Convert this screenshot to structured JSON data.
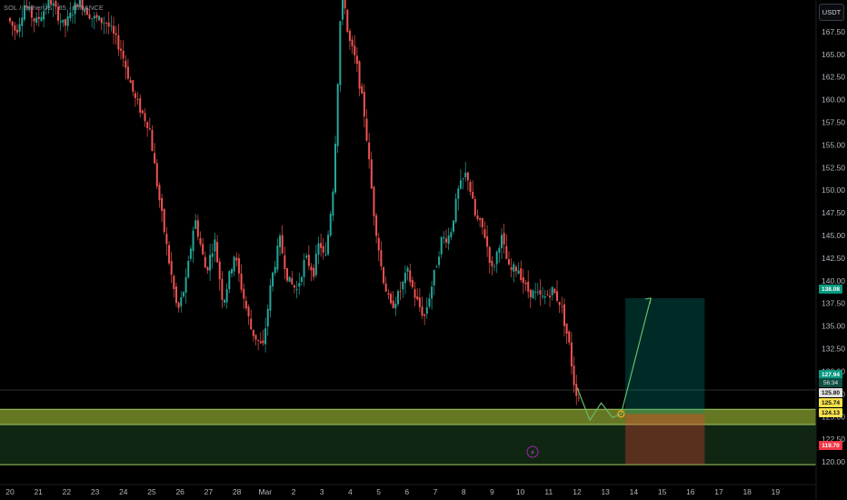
{
  "header": {
    "symbol_label": "SOL / TetherUS · 85 · BINANCE",
    "currency_button": "USDT"
  },
  "colors": {
    "bull": "#26a69a",
    "bear": "#ef5350",
    "zone": "#8bc34a",
    "projection": "#66bb6a"
  },
  "price_axis": {
    "ticks": [
      "167.50",
      "165.00",
      "162.50",
      "160.00",
      "157.50",
      "155.00",
      "152.50",
      "150.00",
      "147.50",
      "145.00",
      "142.50",
      "140.00",
      "137.50",
      "135.00",
      "132.50",
      "130.00",
      "127.50",
      "125.00",
      "122.50",
      "120.00"
    ],
    "badges": {
      "target": "138.08",
      "current": "127.94",
      "countdown": "56:34",
      "zone_top": "125.80",
      "zone_a": "125.74",
      "zone_b": "124.13",
      "stop": "119.70"
    }
  },
  "time_axis": {
    "labels": [
      "20",
      "21",
      "22",
      "23",
      "24",
      "25",
      "26",
      "27",
      "28",
      "Mar",
      "2",
      "3",
      "4",
      "5",
      "6",
      "7",
      "8",
      "9",
      "10",
      "11",
      "12",
      "13",
      "14",
      "15",
      "16",
      "17",
      "18",
      "19"
    ]
  },
  "chart_data": {
    "type": "candlestick",
    "title": "SOL / TetherUS · 85 · BINANCE",
    "x_labels": [
      "20",
      "21",
      "22",
      "23",
      "24",
      "25",
      "26",
      "27",
      "28",
      "Mar",
      "2",
      "3",
      "4",
      "5",
      "6",
      "7",
      "8",
      "9",
      "10",
      "11",
      "12",
      "13",
      "14",
      "15",
      "16",
      "17",
      "18",
      "19"
    ],
    "ylim": [
      117.5,
      171.0
    ],
    "y_ticks": [
      120.0,
      122.5,
      125.0,
      127.5,
      130.0,
      132.5,
      135.0,
      137.5,
      140.0,
      142.5,
      145.0,
      147.5,
      150.0,
      152.5,
      155.0,
      157.5,
      160.0,
      162.5,
      165.0,
      167.5
    ],
    "price_path": [
      [
        20,
        169.0
      ],
      [
        20.3,
        167.5
      ],
      [
        20.6,
        170.5
      ],
      [
        21,
        168.5
      ],
      [
        21.5,
        171.0
      ],
      [
        22,
        168.0
      ],
      [
        22.5,
        171.0
      ],
      [
        23,
        169.0
      ],
      [
        23.5,
        168.5
      ],
      [
        24,
        165.5
      ],
      [
        24.5,
        160.0
      ],
      [
        25,
        157.0
      ],
      [
        25.3,
        150.0
      ],
      [
        25.7,
        142.0
      ],
      [
        26,
        136.5
      ],
      [
        26.3,
        140.0
      ],
      [
        26.6,
        147.0
      ],
      [
        27,
        141.0
      ],
      [
        27.3,
        144.5
      ],
      [
        27.6,
        137.5
      ],
      [
        28,
        143.0
      ],
      [
        28.3,
        138.5
      ],
      [
        28.6,
        134.5
      ],
      [
        29,
        132.5
      ],
      [
        29.3,
        140.0
      ],
      [
        29.6,
        144.5
      ],
      [
        29.9,
        140.0
      ],
      [
        30.2,
        139.0
      ],
      [
        30.5,
        142.5
      ],
      [
        30.8,
        141.0
      ],
      [
        31,
        144.5
      ],
      [
        31.2,
        142.0
      ],
      [
        31.5,
        151.0
      ],
      [
        31.8,
        174.0
      ],
      [
        32,
        167.0
      ],
      [
        32.3,
        164.0
      ],
      [
        32.6,
        158.0
      ],
      [
        32.9,
        148.0
      ],
      [
        33.2,
        141.0
      ],
      [
        33.5,
        137.0
      ],
      [
        33.8,
        138.5
      ],
      [
        34.1,
        141.0
      ],
      [
        34.4,
        138.0
      ],
      [
        34.7,
        136.0
      ],
      [
        35,
        140.0
      ],
      [
        35.3,
        144.5
      ],
      [
        35.6,
        145.0
      ],
      [
        35.9,
        150.0
      ],
      [
        36.2,
        152.0
      ],
      [
        36.5,
        147.0
      ],
      [
        36.8,
        145.5
      ],
      [
        37.1,
        141.0
      ],
      [
        37.4,
        145.0
      ],
      [
        37.7,
        141.0
      ],
      [
        38,
        141.5
      ],
      [
        38.3,
        139.0
      ],
      [
        38.6,
        138.5
      ],
      [
        38.9,
        138.0
      ],
      [
        39.2,
        139.0
      ],
      [
        39.5,
        137.5
      ],
      [
        39.8,
        133.0
      ],
      [
        40,
        128.2
      ],
      [
        40.5,
        124.5
      ],
      [
        40.9,
        126.5
      ],
      [
        41.3,
        125.0
      ],
      [
        41.5,
        125.3
      ],
      [
        42,
        138.08
      ]
    ],
    "support_zone": {
      "top": 125.8,
      "upper_band": 125.74,
      "lower_band": 124.13,
      "bottom": 119.7
    },
    "position": {
      "entry": 125.3,
      "target": 138.08,
      "stop": 119.7
    },
    "current_price": 127.94,
    "grid": false,
    "legend": "none"
  }
}
